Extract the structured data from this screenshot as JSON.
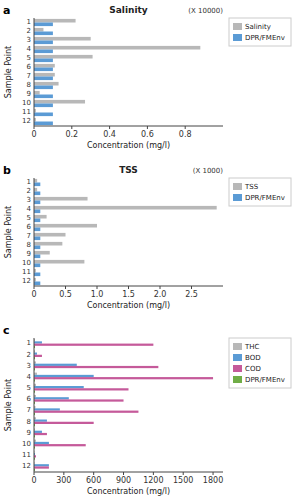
{
  "chart_data": [
    {
      "type": "bar",
      "orientation": "horizontal",
      "title": "Salinity",
      "annotations": [
        "a",
        "(X 10000)"
      ],
      "xlabel": "Concentration (mg/l)",
      "ylabel": "Sample Point",
      "categories": [
        "1",
        "2",
        "3",
        "4",
        "5",
        "6",
        "7",
        "8",
        "9",
        "10",
        "11",
        "12"
      ],
      "series": [
        {
          "name": "Salinity",
          "color": "#b8b8b8",
          "values": [
            0.22,
            0.05,
            0.3,
            0.88,
            0.31,
            0.11,
            0.11,
            0.13,
            0.03,
            0.27,
            0.01,
            0.01
          ]
        },
        {
          "name": "DPR/FMEnv",
          "color": "#5b9bd5",
          "values": [
            0.1,
            0.1,
            0.1,
            0.1,
            0.1,
            0.1,
            0.1,
            0.1,
            0.1,
            0.1,
            0.1,
            0.1
          ]
        }
      ],
      "xlim": [
        0,
        1.0
      ],
      "xticks": [
        0,
        0.2,
        0.4,
        0.6,
        0.8
      ],
      "grid": false,
      "legend": "right"
    },
    {
      "type": "bar",
      "orientation": "horizontal",
      "title": "TSS",
      "annotations": [
        "b",
        "(X 1000)"
      ],
      "xlabel": "Concentration (mg/l)",
      "ylabel": "Sample Point",
      "categories": [
        "1",
        "2",
        "3",
        "4",
        "5",
        "6",
        "7",
        "8",
        "9",
        "10",
        "11",
        "12"
      ],
      "series": [
        {
          "name": "TSS",
          "color": "#b8b8b8",
          "values": [
            0.05,
            0.05,
            0.85,
            2.9,
            0.2,
            1.0,
            0.5,
            0.45,
            0.25,
            0.8,
            0.03,
            0.03
          ]
        },
        {
          "name": "DPR/FMEnv",
          "color": "#5b9bd5",
          "values": [
            0.1,
            0.1,
            0.1,
            0.1,
            0.1,
            0.1,
            0.1,
            0.1,
            0.1,
            0.1,
            0.1,
            0.1
          ]
        }
      ],
      "xlim": [
        0,
        3.0
      ],
      "xticks": [
        0,
        0.5,
        {
          "value": 1.0,
          "label": "1.0"
        },
        1.5,
        {
          "value": 2.0,
          "label": "2.0"
        },
        2.5
      ],
      "grid": false,
      "legend": "right"
    },
    {
      "type": "bar",
      "orientation": "horizontal",
      "annotations": [
        "c"
      ],
      "xlabel": "Concentration (mg/l)",
      "ylabel": "Sample Point",
      "categories": [
        "1",
        "2",
        "3",
        "4",
        "5",
        "6",
        "7",
        "8",
        "9",
        "10",
        "11",
        "12"
      ],
      "series": [
        {
          "name": "THC",
          "color": "#b8b8b8",
          "values": [
            10,
            10,
            20,
            30,
            20,
            20,
            15,
            20,
            10,
            20,
            5,
            5
          ]
        },
        {
          "name": "BOD",
          "color": "#5b9bd5",
          "values": [
            80,
            30,
            430,
            600,
            500,
            350,
            260,
            130,
            80,
            150,
            10,
            150
          ]
        },
        {
          "name": "COD",
          "color": "#c55a9a",
          "values": [
            1200,
            80,
            1250,
            1800,
            950,
            900,
            1050,
            600,
            130,
            520,
            20,
            150
          ]
        },
        {
          "name": "DPR/FMEnv",
          "color": "#70ad47",
          "values": [
            10,
            10,
            10,
            10,
            10,
            10,
            10,
            10,
            10,
            10,
            10,
            10
          ]
        }
      ],
      "xlim": [
        0,
        1900
      ],
      "xticks": [
        0,
        300,
        600,
        900,
        1200,
        1500,
        1800
      ],
      "grid": false,
      "legend": "right"
    }
  ]
}
